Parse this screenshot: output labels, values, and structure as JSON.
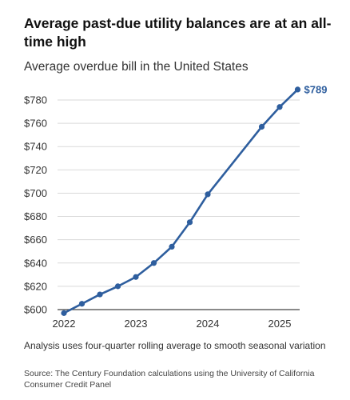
{
  "header": {
    "title": "Average past-due utility balances are at an all-time high",
    "subtitle": "Average overdue bill in the United States"
  },
  "footer": {
    "note": "Analysis uses four-quarter rolling average to smooth seasonal variation",
    "source": "Source: The Century Foundation calculations using the University of California Consumer Credit Panel"
  },
  "chart_data": {
    "type": "line",
    "title": "Average past-due utility balances are at an all-time high",
    "subtitle": "Average overdue bill in the United States",
    "xlabel": "",
    "ylabel": "",
    "x": [
      2022.0,
      2022.25,
      2022.5,
      2022.75,
      2023.0,
      2023.25,
      2023.5,
      2023.75,
      2024.0,
      2024.75,
      2025.0,
      2025.25
    ],
    "series": [
      {
        "values": [
          597,
          605,
          613,
          620,
          628,
          640,
          654,
          675,
          699,
          757,
          774,
          789
        ]
      }
    ],
    "xticks": [
      "2022",
      "2023",
      "2024",
      "2025"
    ],
    "xtick_values": [
      2022,
      2023,
      2024,
      2025
    ],
    "yticks": [
      "$600",
      "$620",
      "$640",
      "$660",
      "$680",
      "$700",
      "$720",
      "$740",
      "$760",
      "$780"
    ],
    "ytick_values": [
      600,
      620,
      640,
      660,
      680,
      700,
      720,
      740,
      760,
      780
    ],
    "ylim": [
      600,
      780
    ],
    "end_label": "$789",
    "grid": "horizontal",
    "legend": "none",
    "color": "#2e5e9e"
  }
}
